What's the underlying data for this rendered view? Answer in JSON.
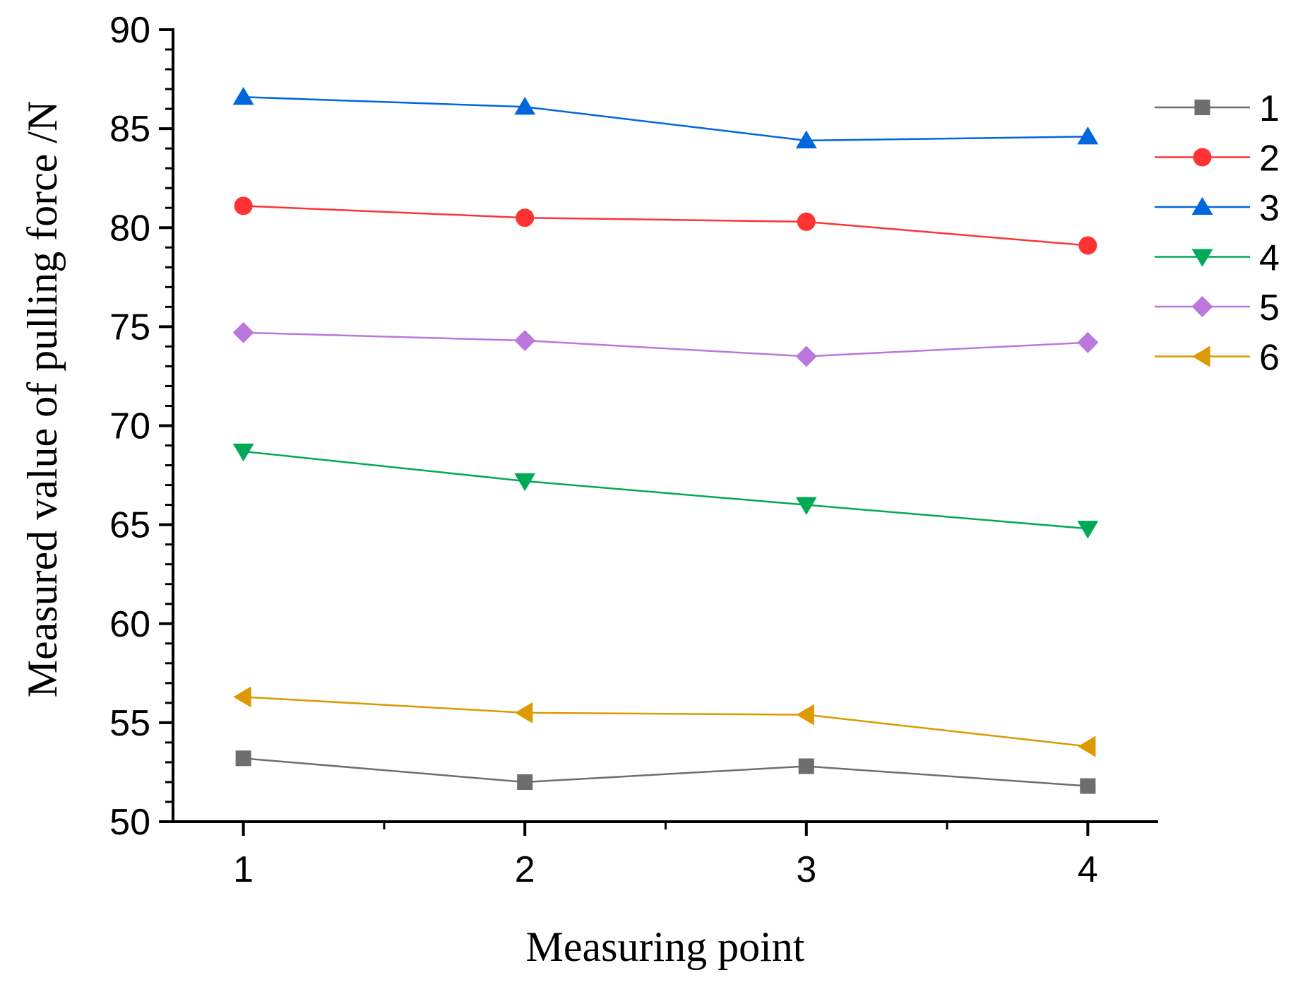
{
  "chart_data": {
    "type": "line",
    "title": "",
    "xlabel": "Measuring point",
    "ylabel": "Measured value of pulling force /N",
    "x": [
      1,
      2,
      3,
      4
    ],
    "x_tick_labels": [
      "1",
      "2",
      "3",
      "4"
    ],
    "xlim": [
      0.75,
      4.25
    ],
    "ylim": [
      50,
      90
    ],
    "y_ticks": [
      50,
      55,
      60,
      65,
      70,
      75,
      80,
      85,
      90
    ],
    "y_tick_labels": [
      "50",
      "55",
      "60",
      "65",
      "70",
      "75",
      "80",
      "85",
      "90"
    ],
    "grid": false,
    "legend_position": "right",
    "series": [
      {
        "name": "1",
        "label": "1",
        "color": "#6e6e6e",
        "marker": "square",
        "values": [
          53.2,
          52.0,
          52.8,
          51.8
        ]
      },
      {
        "name": "2",
        "label": "2",
        "color": "#ff3333",
        "marker": "circle",
        "values": [
          81.1,
          80.5,
          80.3,
          79.1
        ]
      },
      {
        "name": "3",
        "label": "3",
        "color": "#0066dd",
        "marker": "triangle-up",
        "values": [
          86.6,
          86.1,
          84.4,
          84.6
        ]
      },
      {
        "name": "4",
        "label": "4",
        "color": "#00aa55",
        "marker": "triangle-down",
        "values": [
          68.7,
          67.2,
          66.0,
          64.8
        ]
      },
      {
        "name": "5",
        "label": "5",
        "color": "#bb77dd",
        "marker": "diamond",
        "values": [
          74.7,
          74.3,
          73.5,
          74.2
        ]
      },
      {
        "name": "6",
        "label": "6",
        "color": "#dd9900",
        "marker": "triangle-left",
        "values": [
          56.3,
          55.5,
          55.4,
          53.8
        ]
      }
    ]
  }
}
